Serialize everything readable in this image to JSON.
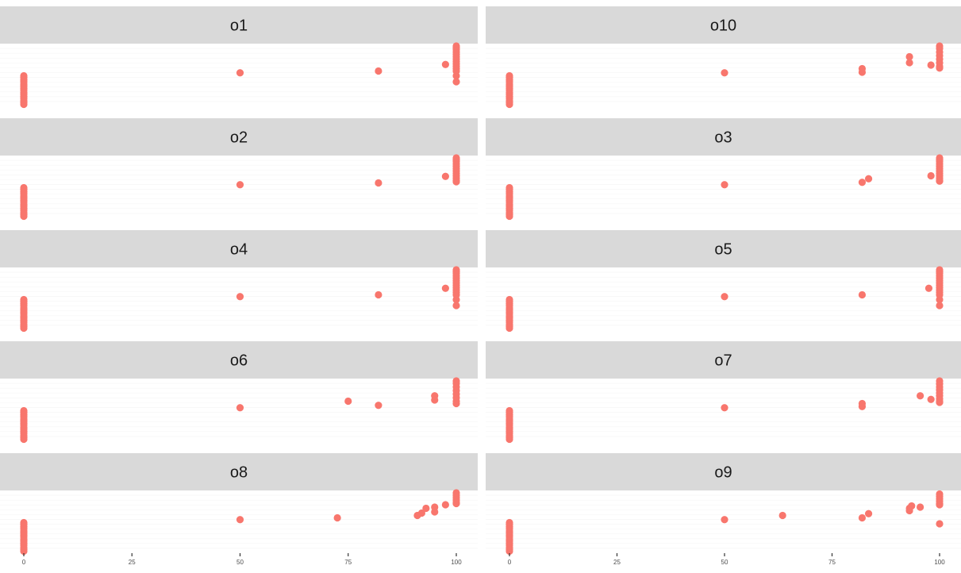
{
  "chart_data": {
    "type": "scatter",
    "facet_layout": "2 columns x 5 rows",
    "strip_position": "top",
    "xlim": [
      0,
      100
    ],
    "x_ticks": [
      "0",
      "25",
      "50",
      "75",
      "100"
    ],
    "xlabel": "",
    "ylabel": "",
    "y_axis_shown": false,
    "grid": true,
    "legend": "none",
    "point_color": "#f8766d",
    "panels": [
      {
        "label": "o1",
        "points": [
          {
            "x": 100,
            "ys": [
              0.62,
              0.66,
              0.7,
              0.74,
              0.78,
              0.82,
              0.86,
              0.9,
              0.94,
              0.97,
              1.0,
              0.5,
              0.58,
              0.4
            ]
          },
          {
            "x": 97.5,
            "ys": [
              0.69
            ]
          },
          {
            "x": 82,
            "ys": [
              0.58
            ]
          },
          {
            "x": 50,
            "ys": [
              0.55
            ]
          },
          {
            "x": 0,
            "ys": [
              0.5,
              0.47,
              0.43,
              0.4,
              0.36,
              0.33,
              0.29,
              0.26,
              0.22,
              0.19,
              0.15,
              0.12,
              0.08,
              0.05,
              0.02
            ]
          }
        ]
      },
      {
        "label": "o10",
        "points": [
          {
            "x": 100,
            "ys": [
              0.66,
              0.72,
              0.78,
              0.84,
              0.9,
              0.96,
              1.0,
              0.63
            ]
          },
          {
            "x": 98,
            "ys": [
              0.68
            ]
          },
          {
            "x": 93,
            "ys": [
              0.72,
              0.82
            ]
          },
          {
            "x": 82,
            "ys": [
              0.56,
              0.62
            ]
          },
          {
            "x": 50,
            "ys": [
              0.55
            ]
          },
          {
            "x": 0,
            "ys": [
              0.5,
              0.47,
              0.43,
              0.4,
              0.36,
              0.33,
              0.29,
              0.26,
              0.22,
              0.19,
              0.15,
              0.12,
              0.08,
              0.05,
              0.02
            ]
          }
        ]
      },
      {
        "label": "o2",
        "points": [
          {
            "x": 100,
            "ys": [
              0.62,
              0.66,
              0.7,
              0.74,
              0.78,
              0.82,
              0.86,
              0.9,
              0.94,
              0.97,
              1.0,
              0.6
            ]
          },
          {
            "x": 97.5,
            "ys": [
              0.69
            ]
          },
          {
            "x": 82,
            "ys": [
              0.58
            ]
          },
          {
            "x": 50,
            "ys": [
              0.55
            ]
          },
          {
            "x": 0,
            "ys": [
              0.5,
              0.47,
              0.43,
              0.4,
              0.36,
              0.33,
              0.29,
              0.26,
              0.22,
              0.19,
              0.15,
              0.12,
              0.08,
              0.05,
              0.02
            ]
          }
        ]
      },
      {
        "label": "o3",
        "points": [
          {
            "x": 100,
            "ys": [
              0.62,
              0.66,
              0.7,
              0.74,
              0.78,
              0.82,
              0.86,
              0.9,
              0.94,
              0.97,
              1.0,
              0.61
            ]
          },
          {
            "x": 98,
            "ys": [
              0.7
            ]
          },
          {
            "x": 83.5,
            "ys": [
              0.65
            ]
          },
          {
            "x": 82,
            "ys": [
              0.59
            ]
          },
          {
            "x": 50,
            "ys": [
              0.55
            ]
          },
          {
            "x": 0,
            "ys": [
              0.5,
              0.47,
              0.43,
              0.4,
              0.36,
              0.33,
              0.29,
              0.26,
              0.22,
              0.19,
              0.15,
              0.12,
              0.08,
              0.05,
              0.02
            ]
          }
        ]
      },
      {
        "label": "o4",
        "points": [
          {
            "x": 100,
            "ys": [
              0.62,
              0.66,
              0.7,
              0.74,
              0.78,
              0.82,
              0.86,
              0.9,
              0.94,
              0.97,
              1.0,
              0.5,
              0.58,
              0.4
            ]
          },
          {
            "x": 97.5,
            "ys": [
              0.69
            ]
          },
          {
            "x": 82,
            "ys": [
              0.58
            ]
          },
          {
            "x": 50,
            "ys": [
              0.55
            ]
          },
          {
            "x": 0,
            "ys": [
              0.5,
              0.47,
              0.43,
              0.4,
              0.36,
              0.33,
              0.29,
              0.26,
              0.22,
              0.19,
              0.15,
              0.12,
              0.08,
              0.05,
              0.02
            ]
          }
        ]
      },
      {
        "label": "o5",
        "points": [
          {
            "x": 100,
            "ys": [
              0.62,
              0.66,
              0.7,
              0.74,
              0.78,
              0.82,
              0.86,
              0.9,
              0.94,
              0.97,
              1.0,
              0.5,
              0.58,
              0.4
            ]
          },
          {
            "x": 97.5,
            "ys": [
              0.69
            ]
          },
          {
            "x": 82,
            "ys": [
              0.58
            ]
          },
          {
            "x": 50,
            "ys": [
              0.55
            ]
          },
          {
            "x": 0,
            "ys": [
              0.5,
              0.47,
              0.43,
              0.4,
              0.36,
              0.33,
              0.29,
              0.26,
              0.22,
              0.19,
              0.15,
              0.12,
              0.08,
              0.05,
              0.02
            ]
          }
        ]
      },
      {
        "label": "o6",
        "points": [
          {
            "x": 100,
            "ys": [
              0.66,
              0.72,
              0.78,
              0.84,
              0.9,
              0.96,
              1.0,
              0.62
            ]
          },
          {
            "x": 95,
            "ys": [
              0.68,
              0.75
            ]
          },
          {
            "x": 82,
            "ys": [
              0.59
            ]
          },
          {
            "x": 75,
            "ys": [
              0.66
            ]
          },
          {
            "x": 50,
            "ys": [
              0.55
            ]
          },
          {
            "x": 0,
            "ys": [
              0.5,
              0.47,
              0.43,
              0.4,
              0.36,
              0.33,
              0.29,
              0.26,
              0.22,
              0.19,
              0.15,
              0.12,
              0.08,
              0.05,
              0.02
            ]
          }
        ]
      },
      {
        "label": "o7",
        "points": [
          {
            "x": 100,
            "ys": [
              0.66,
              0.7,
              0.75,
              0.8,
              0.85,
              0.9,
              0.95,
              1.0,
              0.64
            ]
          },
          {
            "x": 98,
            "ys": [
              0.69
            ]
          },
          {
            "x": 95.5,
            "ys": [
              0.75
            ]
          },
          {
            "x": 82,
            "ys": [
              0.57,
              0.62
            ]
          },
          {
            "x": 50,
            "ys": [
              0.55
            ]
          },
          {
            "x": 0,
            "ys": [
              0.5,
              0.47,
              0.43,
              0.4,
              0.36,
              0.33,
              0.29,
              0.26,
              0.22,
              0.19,
              0.15,
              0.12,
              0.08,
              0.05,
              0.02
            ]
          }
        ]
      },
      {
        "label": "o8",
        "points": [
          {
            "x": 100,
            "ys": [
              0.84,
              0.88,
              0.92,
              0.96,
              1.0,
              0.82
            ]
          },
          {
            "x": 97.5,
            "ys": [
              0.8
            ]
          },
          {
            "x": 95,
            "ys": [
              0.68,
              0.76
            ]
          },
          {
            "x": 93,
            "ys": [
              0.74
            ]
          },
          {
            "x": 92,
            "ys": [
              0.66
            ]
          },
          {
            "x": 91,
            "ys": [
              0.62
            ]
          },
          {
            "x": 72.5,
            "ys": [
              0.58
            ]
          },
          {
            "x": 50,
            "ys": [
              0.55
            ]
          },
          {
            "x": 0,
            "ys": [
              0.5,
              0.47,
              0.43,
              0.4,
              0.36,
              0.33,
              0.29,
              0.26,
              0.22,
              0.19,
              0.15,
              0.12,
              0.08,
              0.05,
              0.02
            ]
          }
        ]
      },
      {
        "label": "o9",
        "points": [
          {
            "x": 100,
            "ys": [
              0.82,
              0.86,
              0.9,
              0.94,
              0.98,
              0.8,
              0.48
            ]
          },
          {
            "x": 95.5,
            "ys": [
              0.76
            ]
          },
          {
            "x": 93.5,
            "ys": [
              0.78
            ]
          },
          {
            "x": 93,
            "ys": [
              0.7,
              0.74
            ]
          },
          {
            "x": 83.5,
            "ys": [
              0.65
            ]
          },
          {
            "x": 82,
            "ys": [
              0.58
            ]
          },
          {
            "x": 63.5,
            "ys": [
              0.62
            ]
          },
          {
            "x": 50,
            "ys": [
              0.55
            ]
          },
          {
            "x": 0,
            "ys": [
              0.5,
              0.47,
              0.43,
              0.4,
              0.36,
              0.33,
              0.29,
              0.26,
              0.22,
              0.19,
              0.15,
              0.12,
              0.08,
              0.05,
              0.02
            ]
          }
        ]
      }
    ]
  }
}
